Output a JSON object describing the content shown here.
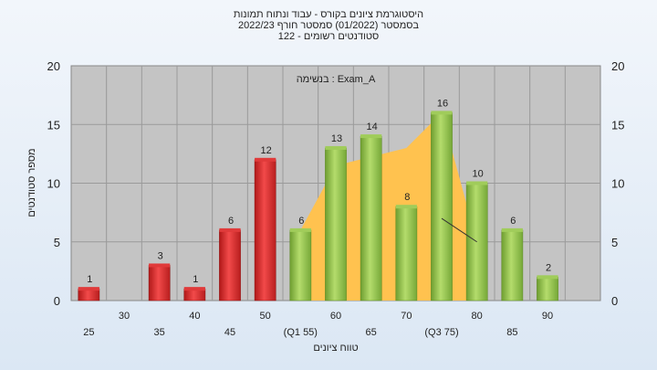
{
  "titles": {
    "line1": "היסטוגרמת ציונים בקורס - עבוד ונתוח תמונות",
    "line2": "בסמסטר  (01/2022)  סמסטר חורף 2022/23",
    "line3": "סטודנטים רשומים - 122"
  },
  "colors": {
    "background_top": "#f2f6fb",
    "plot_background": "#c4c4c4",
    "bar_low": "#d42a2a",
    "bar_high": "#8fc04a",
    "area_fill": "#ffc24f",
    "line": "#333333"
  },
  "chart_data": {
    "type": "bar",
    "title": "",
    "annotation": "בנשימה : Exam_A",
    "xlabel": "טווח ציונים",
    "ylabel": "מספר סטודנטים",
    "ylim": [
      0,
      20
    ],
    "yticks": [
      0,
      5,
      10,
      15,
      20
    ],
    "grid": true,
    "x_tick_labels": [
      {
        "label": "25",
        "row": 2
      },
      {
        "label": "30",
        "row": 1
      },
      {
        "label": "35",
        "row": 2
      },
      {
        "label": "40",
        "row": 1
      },
      {
        "label": "45",
        "row": 2
      },
      {
        "label": "50",
        "row": 1
      },
      {
        "label": "(Q1 55)",
        "row": 2
      },
      {
        "label": "60",
        "row": 1
      },
      {
        "label": "65",
        "row": 2
      },
      {
        "label": "70",
        "row": 1
      },
      {
        "label": "(Q3 75)",
        "row": 2
      },
      {
        "label": "80",
        "row": 1
      },
      {
        "label": "85",
        "row": 2
      },
      {
        "label": "90",
        "row": 1
      }
    ],
    "bars": [
      {
        "x": 25,
        "value": 1,
        "color": "red"
      },
      {
        "x": 35,
        "value": 3,
        "color": "red"
      },
      {
        "x": 40,
        "value": 1,
        "color": "red"
      },
      {
        "x": 45,
        "value": 6,
        "color": "red"
      },
      {
        "x": 50,
        "value": 12,
        "color": "red"
      },
      {
        "x": 55,
        "value": 6,
        "color": "green"
      },
      {
        "x": 60,
        "value": 13,
        "color": "green"
      },
      {
        "x": 65,
        "value": 14,
        "color": "green"
      },
      {
        "x": 70,
        "value": 8,
        "color": "green"
      },
      {
        "x": 75,
        "value": 16,
        "color": "green"
      },
      {
        "x": 80,
        "value": 10,
        "color": "green"
      },
      {
        "x": 85,
        "value": 6,
        "color": "green"
      },
      {
        "x": 90,
        "value": 2,
        "color": "green"
      }
    ],
    "shaded_area": [
      [
        55,
        6
      ],
      [
        60,
        11.5
      ],
      [
        70,
        13
      ],
      [
        75,
        16
      ],
      [
        80,
        5
      ]
    ]
  }
}
